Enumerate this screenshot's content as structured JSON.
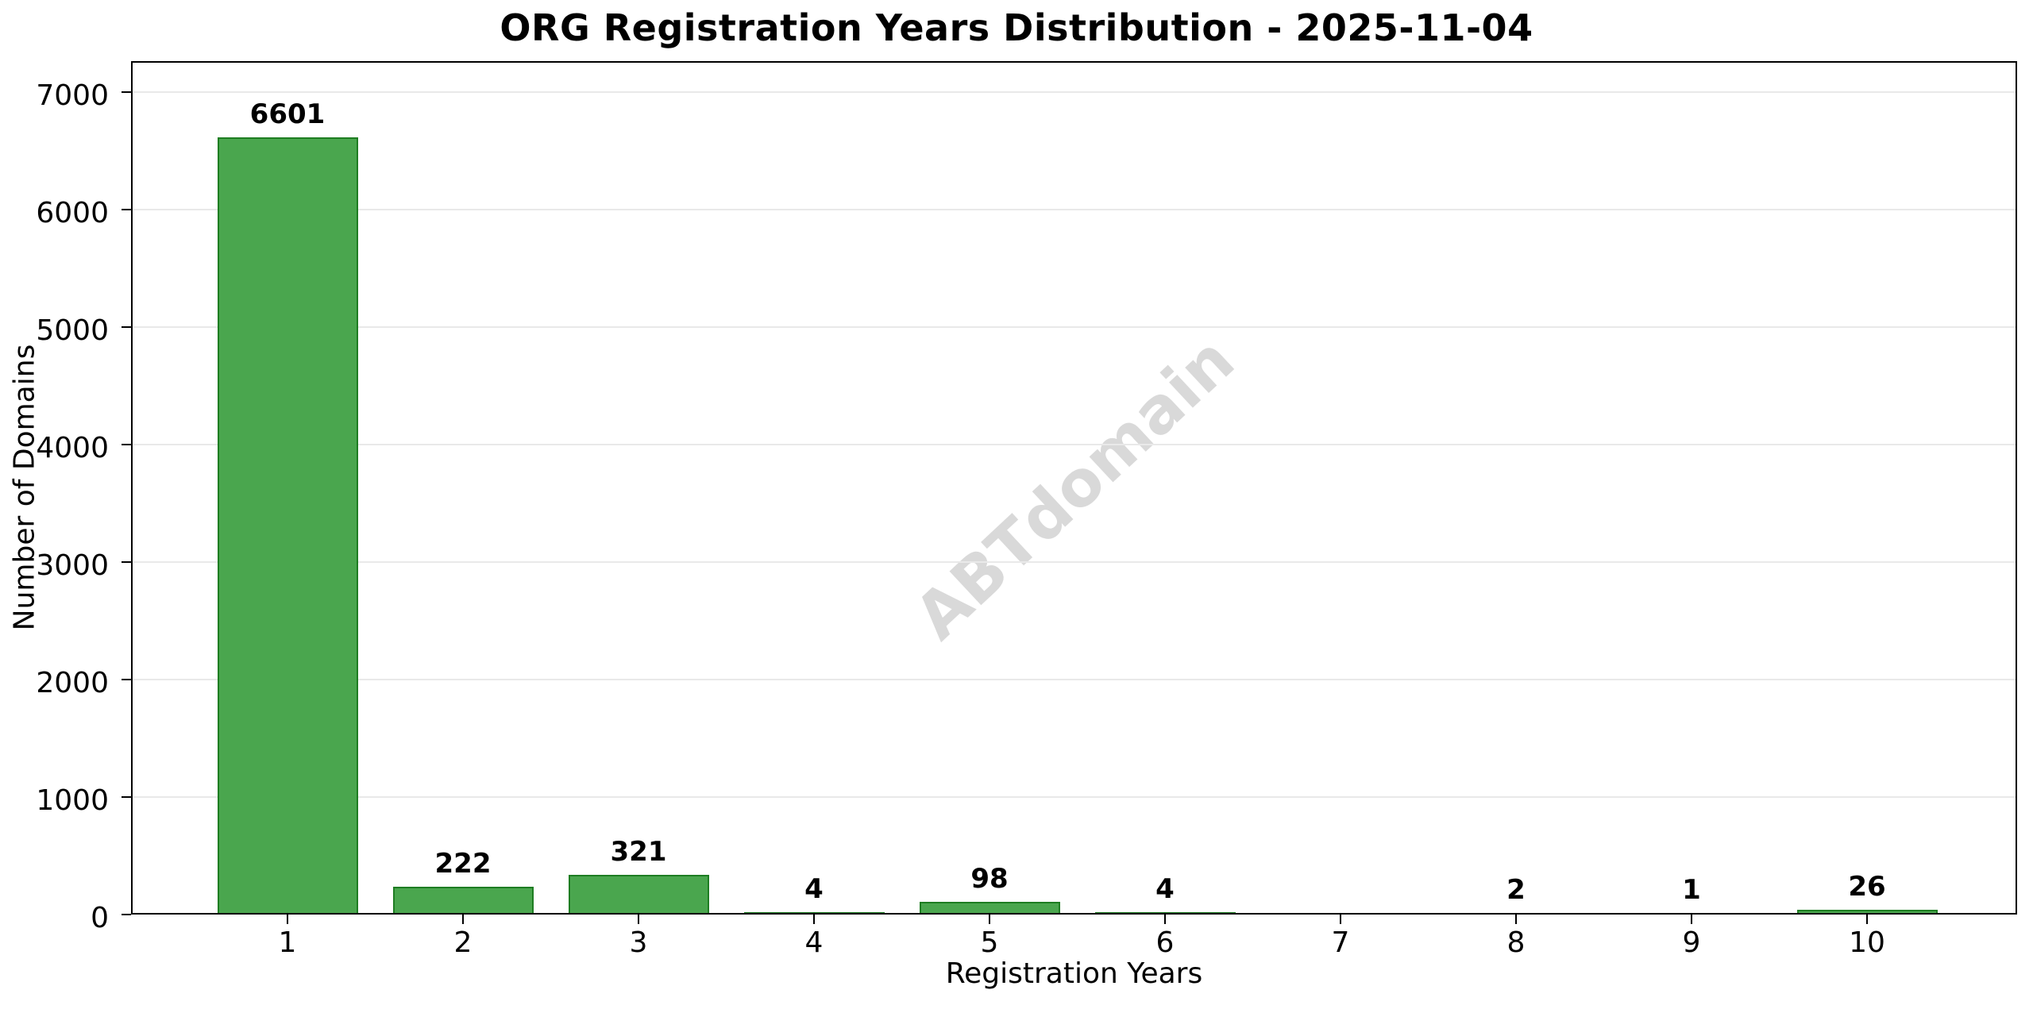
{
  "title": "ORG Registration Years Distribution - 2025-11-04",
  "chart_data": {
    "type": "bar",
    "title": "ORG Registration Years Distribution - 2025-11-04",
    "xlabel": "Registration Years",
    "ylabel": "Number of Domains",
    "categories": [
      "1",
      "2",
      "3",
      "4",
      "5",
      "6",
      "7",
      "8",
      "9",
      "10"
    ],
    "values": [
      6601,
      222,
      321,
      4,
      98,
      4,
      0,
      2,
      1,
      26
    ],
    "bar_labels": [
      "6601",
      "222",
      "321",
      "4",
      "98",
      "4",
      "",
      "2",
      "1",
      "26"
    ],
    "yticks": [
      0,
      1000,
      2000,
      3000,
      4000,
      5000,
      6000,
      7000
    ],
    "ylim": [
      0,
      7261
    ],
    "grid": "horizontal-only",
    "legend": "none",
    "watermark": "ABTdomain",
    "bar_fill_color": "#4aa64e",
    "bar_edge_color": "#1e7d22",
    "gridline_color": "#e9e9e9",
    "watermark_color": "#d9d9d9",
    "background_color": "#ffffff"
  }
}
